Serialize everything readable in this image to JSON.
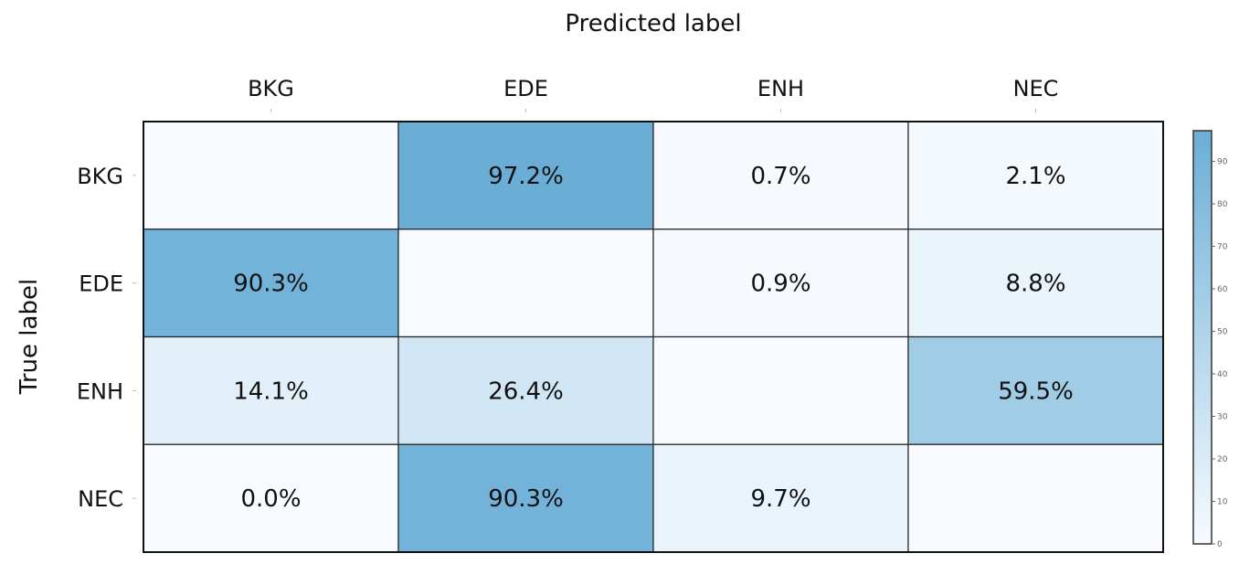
{
  "chart_data": {
    "type": "heatmap",
    "xlabel": "Predicted label",
    "ylabel": "True label",
    "x_categories": [
      "BKG",
      "EDE",
      "ENH",
      "NEC"
    ],
    "y_categories": [
      "BKG",
      "EDE",
      "ENH",
      "NEC"
    ],
    "values": [
      [
        null,
        97.2,
        0.7,
        2.1
      ],
      [
        90.3,
        null,
        0.9,
        8.8
      ],
      [
        14.1,
        26.4,
        null,
        59.5
      ],
      [
        0.0,
        90.3,
        9.7,
        null
      ]
    ],
    "labels": [
      [
        "",
        "97.2%",
        "0.7%",
        "2.1%"
      ],
      [
        "90.3%",
        "",
        "0.9%",
        "8.8%"
      ],
      [
        "14.1%",
        "26.4%",
        "",
        "59.5%"
      ],
      [
        "0.0%",
        "90.3%",
        "9.7%",
        ""
      ]
    ],
    "colorbar": {
      "range": [
        0,
        97.2
      ],
      "ticks": [
        "0",
        "10",
        "20",
        "30",
        "40",
        "50",
        "60",
        "70",
        "80",
        "90"
      ]
    },
    "colors": {
      "low": "#f7fbff",
      "high": "#6aaed6",
      "border": "#222222"
    }
  }
}
